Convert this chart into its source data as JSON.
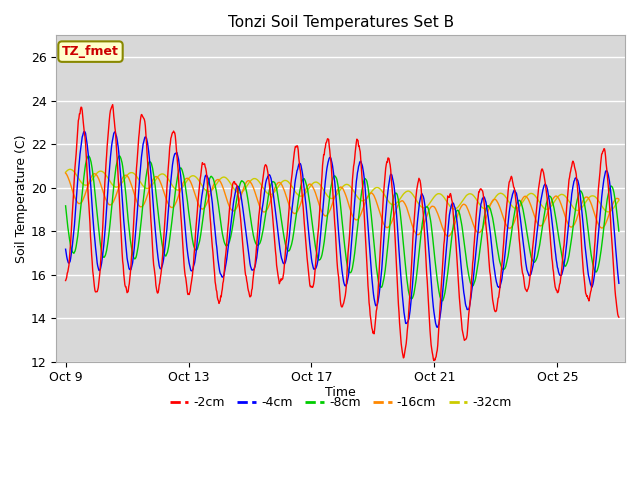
{
  "title": "Tonzi Soil Temperatures Set B",
  "xlabel": "Time",
  "ylabel": "Soil Temperature (C)",
  "ylim": [
    12,
    27
  ],
  "yticks": [
    12,
    14,
    16,
    18,
    20,
    22,
    24,
    26
  ],
  "annotation": "TZ_fmet",
  "annotation_color": "#cc0000",
  "annotation_bg": "#ffffcc",
  "annotation_border": "#888800",
  "colors": {
    "-2cm": "#ff0000",
    "-4cm": "#0000ff",
    "-8cm": "#00cc00",
    "-16cm": "#ff8800",
    "-32cm": "#cccc00"
  },
  "legend_labels": [
    "-2cm",
    "-4cm",
    "-8cm",
    "-16cm",
    "-32cm"
  ],
  "fig_facecolor": "#ffffff",
  "plot_facecolor": "#d8d8d8",
  "grid_color": "#ffffff",
  "n_points": 1000,
  "start_day": 9.0,
  "end_day": 27.0,
  "xlim": [
    8.7,
    27.2
  ],
  "x_ticks": [
    9,
    13,
    17,
    21,
    25
  ],
  "x_tick_labels": [
    "Oct 9",
    "Oct 13",
    "Oct 17",
    "Oct 21",
    "Oct 25"
  ]
}
